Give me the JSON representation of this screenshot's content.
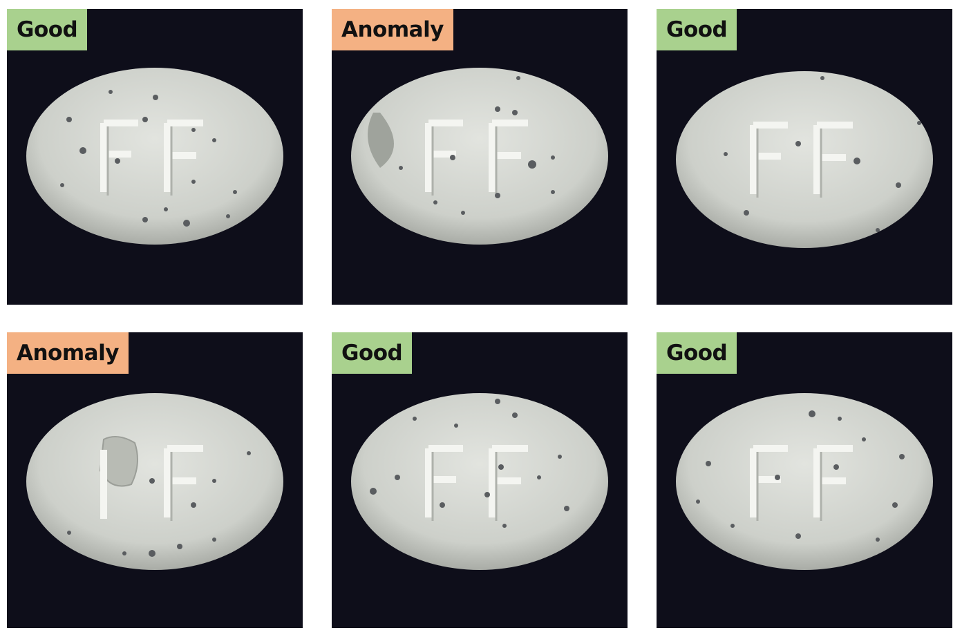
{
  "colors": {
    "background": "#0e0e1a",
    "good_badge": "#a9d18e",
    "anomaly_badge": "#f4b183",
    "pill": "#d5d8d2"
  },
  "tiles": [
    {
      "label": "Good",
      "status": "good"
    },
    {
      "label": "Anomaly",
      "status": "anomaly"
    },
    {
      "label": "Good",
      "status": "good"
    },
    {
      "label": "Anomaly",
      "status": "anomaly"
    },
    {
      "label": "Good",
      "status": "good"
    },
    {
      "label": "Good",
      "status": "good"
    }
  ]
}
